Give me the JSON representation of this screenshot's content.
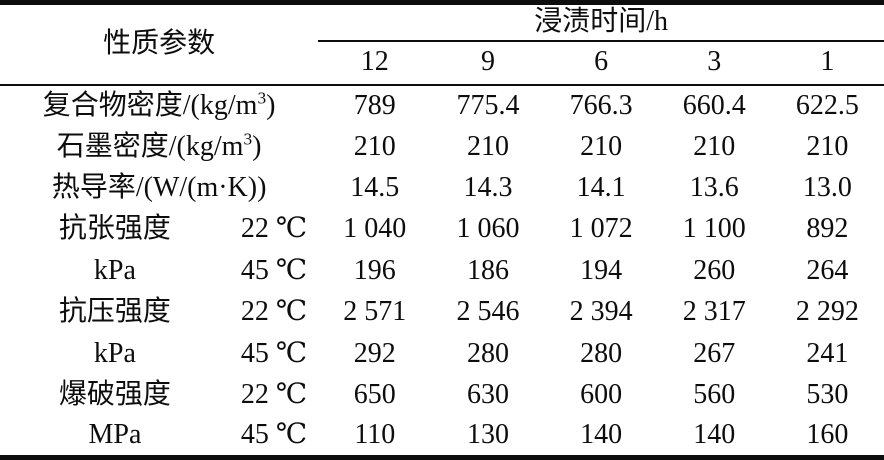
{
  "table": {
    "corner_label": "性质参数",
    "spanner_label": "浸渍时间/h",
    "time_columns": [
      "12",
      "9",
      "6",
      "3",
      "1"
    ],
    "rows": [
      {
        "label_pre": "复合物密度/(kg/m",
        "label_sup": "3",
        "label_post": ")",
        "values": [
          "789",
          "775.4",
          "766.3",
          "660.4",
          "622.5"
        ]
      },
      {
        "label_pre": "石墨密度/(kg/m",
        "label_sup": "3",
        "label_post": ")",
        "values": [
          "210",
          "210",
          "210",
          "210",
          "210"
        ]
      },
      {
        "label": "热导率/(W/(m·K))",
        "values": [
          "14.5",
          "14.3",
          "14.1",
          "13.6",
          "13.0"
        ]
      },
      {
        "label": "抗张强度",
        "temp": "22 ℃",
        "values": [
          "1 040",
          "1 060",
          "1 072",
          "1 100",
          "892"
        ]
      },
      {
        "label": "kPa",
        "temp": "45 ℃",
        "values": [
          "196",
          "186",
          "194",
          "260",
          "264"
        ]
      },
      {
        "label": "抗压强度",
        "temp": "22 ℃",
        "values": [
          "2 571",
          "2 546",
          "2 394",
          "2 317",
          "2 292"
        ]
      },
      {
        "label": "kPa",
        "temp": "45 ℃",
        "values": [
          "292",
          "280",
          "280",
          "267",
          "241"
        ]
      },
      {
        "label": "爆破强度",
        "temp": "22 ℃",
        "values": [
          "650",
          "630",
          "600",
          "560",
          "530"
        ]
      },
      {
        "label": "MPa",
        "temp": "45 ℃",
        "values": [
          "110",
          "130",
          "140",
          "140",
          "160"
        ]
      }
    ]
  },
  "chart_data": {
    "type": "table",
    "title": "性质参数 × 浸渍时间/h",
    "x_label": "浸渍时间/h",
    "x": [
      12,
      9,
      6,
      3,
      1
    ],
    "series": [
      {
        "name": "复合物密度/(kg/m3)",
        "values": [
          789,
          775.4,
          766.3,
          660.4,
          622.5
        ]
      },
      {
        "name": "石墨密度/(kg/m3)",
        "values": [
          210,
          210,
          210,
          210,
          210
        ]
      },
      {
        "name": "热导率/(W/(m·K))",
        "values": [
          14.5,
          14.3,
          14.1,
          13.6,
          13.0
        ]
      },
      {
        "name": "抗张强度 kPa 22 ℃",
        "values": [
          1040,
          1060,
          1072,
          1100,
          892
        ]
      },
      {
        "name": "抗张强度 kPa 45 ℃",
        "values": [
          196,
          186,
          194,
          260,
          264
        ]
      },
      {
        "name": "抗压强度 kPa 22 ℃",
        "values": [
          2571,
          2546,
          2394,
          2317,
          2292
        ]
      },
      {
        "name": "抗压强度 kPa 45 ℃",
        "values": [
          292,
          280,
          280,
          267,
          241
        ]
      },
      {
        "name": "爆破强度 MPa 22 ℃",
        "values": [
          650,
          630,
          600,
          560,
          530
        ]
      },
      {
        "name": "爆破强度 MPa 45 ℃",
        "values": [
          110,
          130,
          140,
          140,
          160
        ]
      }
    ]
  }
}
